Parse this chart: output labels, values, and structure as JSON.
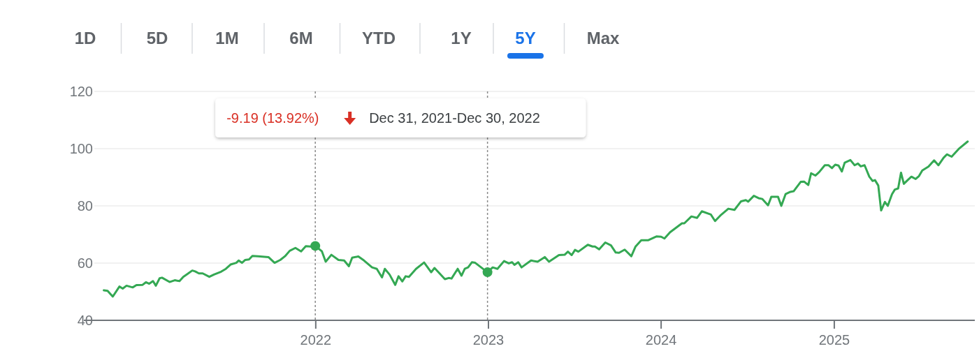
{
  "chart_data": {
    "type": "line",
    "annotations": [
      "1D",
      "5D",
      "1M",
      "6M",
      "YTD",
      "1Y",
      "5Y",
      "Max",
      "-9.19 (13.92%)",
      "Dec 31, 2021-Dec 30, 2022"
    ],
    "xlim": [
      "2020-09-20",
      "2025-10-25"
    ],
    "xticks": [
      "2022",
      "2023",
      "2024",
      "2025"
    ],
    "ylim": [
      40,
      120
    ],
    "yticks": [
      40,
      60,
      80,
      100,
      120
    ],
    "grid": "y",
    "line_style": "solid",
    "ref_lines": [
      {
        "axis": "x",
        "value": "2021-12-31",
        "line_style": "dotted",
        "color": "#888888"
      },
      {
        "axis": "x",
        "value": "2022-12-30",
        "line_style": "dotted",
        "color": "#888888"
      }
    ],
    "series": [
      {
        "color": "#34a853",
        "x": [
          "2020-10-10",
          "2020-10-18",
          "2020-10-29",
          "2020-11-12",
          "2020-11-19",
          "2020-11-27",
          "2020-12-10",
          "2020-12-18",
          "2020-12-31",
          "2021-01-07",
          "2021-01-14",
          "2021-01-22",
          "2021-01-28",
          "2021-02-05",
          "2021-02-10",
          "2021-02-26",
          "2021-03-09",
          "2021-03-19",
          "2021-03-27",
          "2021-04-05",
          "2021-04-15",
          "2021-04-21",
          "2021-04-29",
          "2021-05-07",
          "2021-05-21",
          "2021-05-31",
          "2021-06-15",
          "2021-06-25",
          "2021-07-05",
          "2021-07-17",
          "2021-07-22",
          "2021-07-29",
          "2021-08-05",
          "2021-08-13",
          "2021-08-20",
          "2021-09-01",
          "2021-09-23",
          "2021-10-06",
          "2021-10-18",
          "2021-10-28",
          "2021-11-07",
          "2021-11-19",
          "2021-12-01",
          "2021-12-11",
          "2021-12-21",
          "2021-12-31",
          "2022-01-14",
          "2022-01-22",
          "2022-02-03",
          "2022-02-18",
          "2022-03-02",
          "2022-03-12",
          "2022-03-19",
          "2022-04-01",
          "2022-04-13",
          "2022-04-30",
          "2022-05-10",
          "2022-05-21",
          "2022-05-27",
          "2022-06-06",
          "2022-06-18",
          "2022-06-25",
          "2022-07-03",
          "2022-07-10",
          "2022-07-17",
          "2022-08-01",
          "2022-08-18",
          "2022-09-02",
          "2022-09-09",
          "2022-10-01",
          "2022-10-09",
          "2022-10-15",
          "2022-10-28",
          "2022-11-05",
          "2022-11-12",
          "2022-11-19",
          "2022-11-27",
          "2022-12-04",
          "2022-12-30",
          "2023-01-10",
          "2023-01-20",
          "2023-02-03",
          "2023-02-13",
          "2023-02-20",
          "2023-02-25",
          "2023-03-05",
          "2023-03-12",
          "2023-04-01",
          "2023-04-15",
          "2023-04-30",
          "2023-05-09",
          "2023-05-30",
          "2023-06-11",
          "2023-06-18",
          "2023-06-26",
          "2023-07-03",
          "2023-07-10",
          "2023-07-30",
          "2023-08-09",
          "2023-08-14",
          "2023-08-23",
          "2023-09-05",
          "2023-09-17",
          "2023-09-27",
          "2023-10-04",
          "2023-10-16",
          "2023-10-30",
          "2023-11-08",
          "2023-11-20",
          "2023-12-05",
          "2023-12-22",
          "2024-01-01",
          "2024-01-08",
          "2024-01-20",
          "2024-02-14",
          "2024-02-19",
          "2024-03-05",
          "2024-03-17",
          "2024-03-27",
          "2024-04-15",
          "2024-04-24",
          "2024-05-05",
          "2024-05-22",
          "2024-06-04",
          "2024-06-18",
          "2024-06-28",
          "2024-07-03",
          "2024-07-15",
          "2024-07-25",
          "2024-08-02",
          "2024-08-14",
          "2024-08-21",
          "2024-09-04",
          "2024-09-11",
          "2024-09-20",
          "2024-09-30",
          "2024-10-07",
          "2024-10-22",
          "2024-10-29",
          "2024-11-07",
          "2024-11-13",
          "2024-11-22",
          "2024-11-30",
          "2024-12-12",
          "2024-12-20",
          "2024-12-27",
          "2025-01-03",
          "2025-01-10",
          "2025-01-17",
          "2025-01-23",
          "2025-02-04",
          "2025-02-13",
          "2025-02-20",
          "2025-02-26",
          "2025-03-06",
          "2025-03-16",
          "2025-03-23",
          "2025-03-28",
          "2025-04-04",
          "2025-04-10",
          "2025-04-18",
          "2025-04-24",
          "2025-05-03",
          "2025-05-09",
          "2025-05-16",
          "2025-05-22",
          "2025-05-28",
          "2025-06-05",
          "2025-06-13",
          "2025-06-22",
          "2025-06-29",
          "2025-07-06",
          "2025-07-19",
          "2025-07-31",
          "2025-08-09",
          "2025-08-20",
          "2025-08-27",
          "2025-09-06",
          "2025-09-21",
          "2025-10-10"
        ],
        "values": [
          50.5,
          50.3,
          48.3,
          51.8,
          51.1,
          52.1,
          51.5,
          52.3,
          52.4,
          53.3,
          52.8,
          53.7,
          52.1,
          54.7,
          54.9,
          53.4,
          54.0,
          53.7,
          55.2,
          56.2,
          57.4,
          57.1,
          56.4,
          56.4,
          55.2,
          56.0,
          57.0,
          58.0,
          59.5,
          60.1,
          60.9,
          60.1,
          61.1,
          61.3,
          62.5,
          62.4,
          62.1,
          60.1,
          61.1,
          62.4,
          64.3,
          65.3,
          64.1,
          65.9,
          65.8,
          66.0,
          64.1,
          60.5,
          62.9,
          61.1,
          60.9,
          58.9,
          61.9,
          62.3,
          60.9,
          58.5,
          58.0,
          55.0,
          58.0,
          56.0,
          52.4,
          55.4,
          53.6,
          55.4,
          55.2,
          58.0,
          60.2,
          56.8,
          58.3,
          54.4,
          54.8,
          54.6,
          58.0,
          55.6,
          58.0,
          58.5,
          60.3,
          60.1,
          56.8,
          58.5,
          58.0,
          60.7,
          59.9,
          60.3,
          59.4,
          60.3,
          58.5,
          60.9,
          60.5,
          62.1,
          60.5,
          62.8,
          62.9,
          64.0,
          62.8,
          64.6,
          64.0,
          66.4,
          65.8,
          65.8,
          64.8,
          67.2,
          66.2,
          63.7,
          63.6,
          64.7,
          62.4,
          65.8,
          68.0,
          68.0,
          69.3,
          69.2,
          68.6,
          70.8,
          73.9,
          73.9,
          76.3,
          75.8,
          78.1,
          77.0,
          74.7,
          76.6,
          79.0,
          78.6,
          81.6,
          82.0,
          81.5,
          83.5,
          82.7,
          82.4,
          80.2,
          83.2,
          83.2,
          80.0,
          84.1,
          84.9,
          85.1,
          88.4,
          88.5,
          87.3,
          91.4,
          90.6,
          91.8,
          94.2,
          94.2,
          93.2,
          94.4,
          94.1,
          92.0,
          95.1,
          96.0,
          94.2,
          94.8,
          93.8,
          94.2,
          90.2,
          88.7,
          89.0,
          87.1,
          78.4,
          81.4,
          80.0,
          84.1,
          85.7,
          86.1,
          91.6,
          87.7,
          89.0,
          90.2,
          89.4,
          90.4,
          92.4,
          93.7,
          95.9,
          94.2,
          96.8,
          98.0,
          97.2,
          99.9,
          102.5
        ]
      },
      {
        "type": "scatter",
        "color": "#34a853",
        "marker": "circle",
        "x": [
          "2021-12-31",
          "2022-12-30"
        ],
        "values": [
          66.0,
          56.8
        ]
      }
    ]
  }
}
